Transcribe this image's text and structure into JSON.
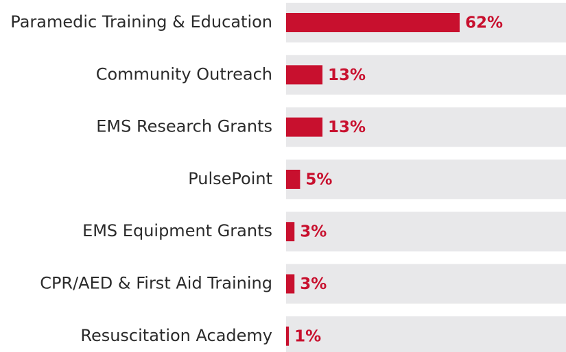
{
  "chart_data": {
    "type": "bar",
    "orientation": "horizontal",
    "categories": [
      "Paramedic Training & Education",
      "Community Outreach",
      "EMS Research Grants",
      "PulsePoint",
      "EMS Equipment Grants",
      "CPR/AED & First Aid Training",
      "Resuscitation Academy"
    ],
    "values": [
      62,
      13,
      13,
      5,
      3,
      3,
      1
    ],
    "value_labels": [
      "62%",
      "13%",
      "13%",
      "5%",
      "3%",
      "3%",
      "1%"
    ],
    "color": "#c8102e",
    "xlim": [
      0,
      100
    ]
  }
}
